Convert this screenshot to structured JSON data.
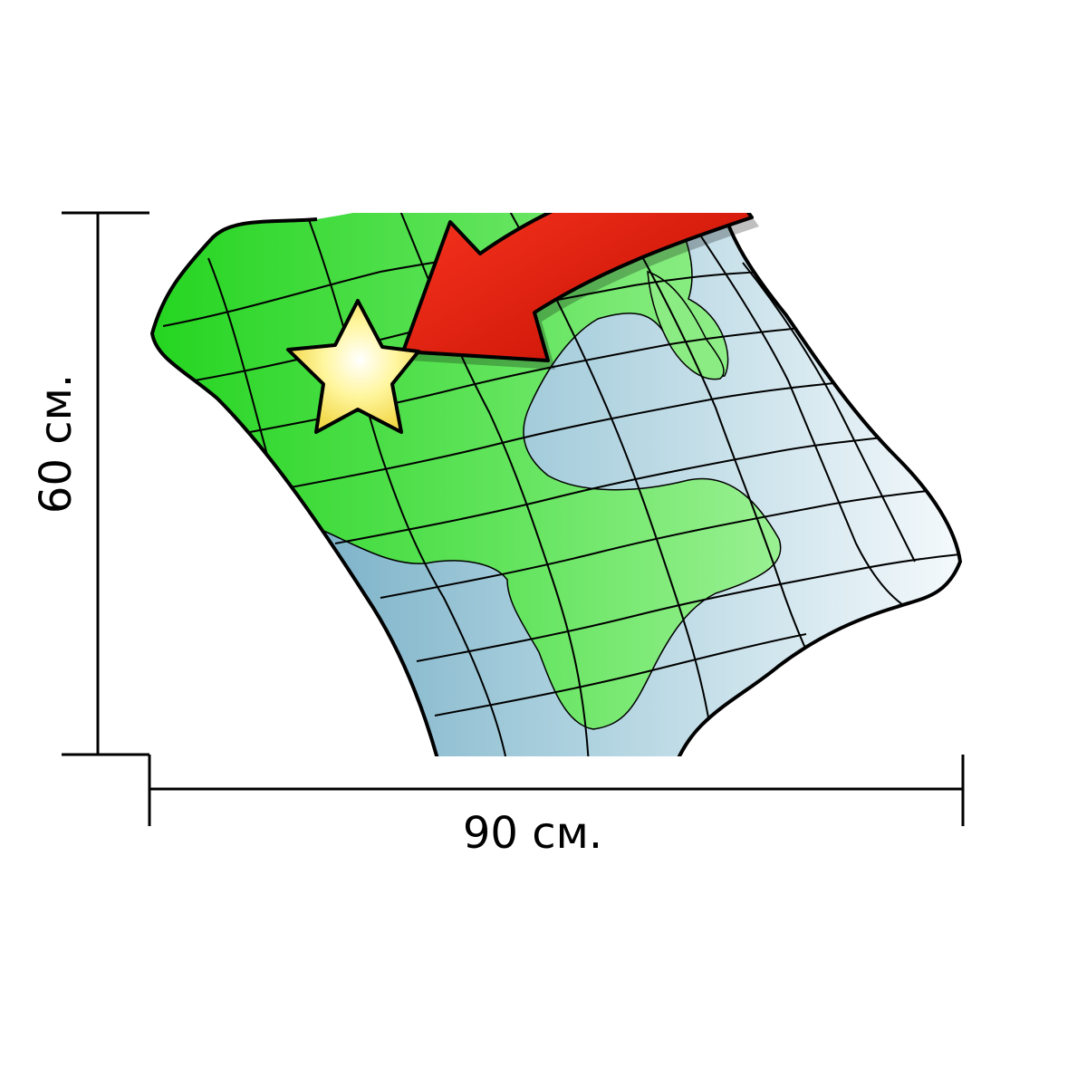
{
  "dimensions": {
    "width_label": "90 см.",
    "height_label": "60 см.",
    "width_value": 90,
    "height_value": 60,
    "unit": "см."
  },
  "illustration": {
    "icons": [
      "folded-map-icon",
      "red-arrow-icon",
      "yellow-star-icon"
    ],
    "colors": {
      "land": "#2fd12f",
      "land_light": "#8ee88a",
      "water": "#7fb8cc",
      "water_light": "#eef5fa",
      "arrow": "#e11a0c",
      "star": "#fff07a",
      "outline": "#000000"
    }
  }
}
